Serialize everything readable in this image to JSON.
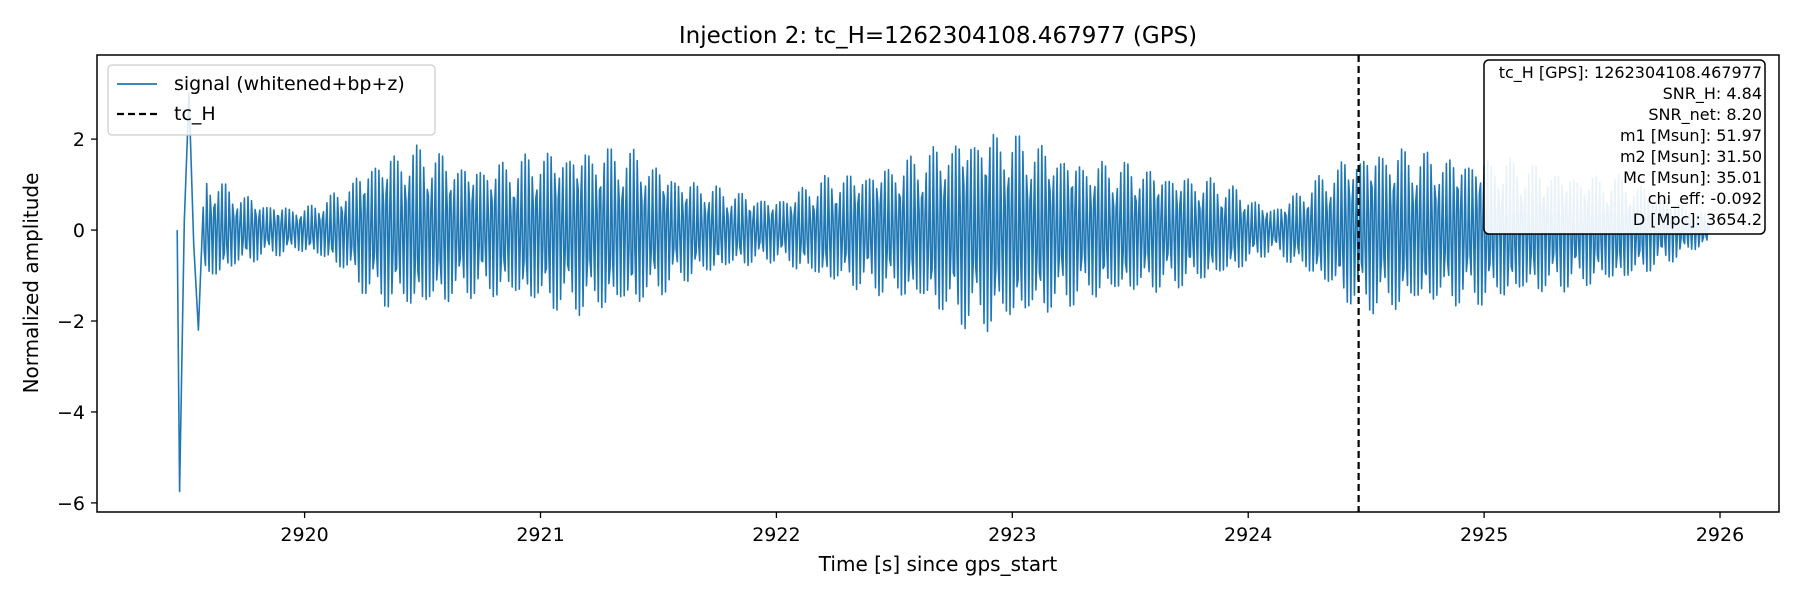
{
  "chart_data": {
    "type": "line",
    "title": "Injection 2: tc_H=1262304108.467977 (GPS)",
    "xlabel": "Time [s] since gps_start",
    "ylabel": "Normalized amplitude",
    "xlim": [
      2919.12,
      2926.25
    ],
    "ylim": [
      -6.2,
      3.85
    ],
    "xticks": [
      2920,
      2921,
      2922,
      2923,
      2924,
      2925,
      2926
    ],
    "xtick_labels": [
      "2920",
      "2921",
      "2922",
      "2923",
      "2924",
      "2925",
      "2926"
    ],
    "yticks": [
      2,
      0,
      -2,
      -4,
      -6
    ],
    "ytick_labels": [
      "2",
      "0",
      "−2",
      "−4",
      "−6"
    ],
    "grid": false,
    "legend_position": "upper-left",
    "series": [
      {
        "name": "signal (whitened+bp+z)",
        "color": "#1f77b4",
        "style": "solid",
        "t_start": 2919.46,
        "t_end": 2925.96,
        "dt": 0.005,
        "carrier_hz": 63,
        "initial_transient": {
          "t": [
            2919.46,
            2919.47,
            2919.49,
            2919.51,
            2919.53,
            2919.55,
            2919.57
          ],
          "y": [
            0.0,
            -5.75,
            0.2,
            3.0,
            -0.3,
            -2.2,
            0.5
          ]
        },
        "envelope": {
          "t": [
            2919.55,
            2919.7,
            2919.85,
            2920.0,
            2920.15,
            2920.3,
            2920.5,
            2920.7,
            2920.9,
            2921.0,
            2921.2,
            2921.4,
            2921.6,
            2921.8,
            2922.0,
            2922.2,
            2922.4,
            2922.6,
            2922.8,
            2922.9,
            2923.1,
            2923.3,
            2923.5,
            2923.7,
            2923.9,
            2924.1,
            2924.3,
            2924.45,
            2924.6,
            2924.8,
            2925.0,
            2925.2,
            2925.4,
            2925.6,
            2925.8,
            2925.96
          ],
          "amp": [
            1.4,
            0.9,
            0.6,
            0.5,
            0.9,
            1.7,
            1.9,
            1.5,
            1.6,
            1.8,
            1.9,
            1.8,
            1.2,
            0.9,
            0.7,
            1.2,
            1.4,
            1.7,
            2.2,
            2.3,
            2.0,
            1.6,
            1.5,
            1.3,
            1.1,
            0.5,
            1.2,
            1.8,
            1.9,
            1.7,
            1.7,
            1.5,
            1.3,
            1.2,
            0.7,
            0.3
          ]
        }
      },
      {
        "name": "tc_H",
        "color": "#000000",
        "style": "dashed",
        "x": 2924.468
      }
    ],
    "info_box": [
      "tc_H [GPS]: 1262304108.467977",
      "SNR_H: 4.84",
      "SNR_net: 8.20",
      "m1 [Msun]: 51.97",
      "m2 [Msun]: 31.50",
      "Mc [Msun]: 35.01",
      "chi_eff: -0.092",
      "D [Mpc]: 3654.2"
    ]
  }
}
